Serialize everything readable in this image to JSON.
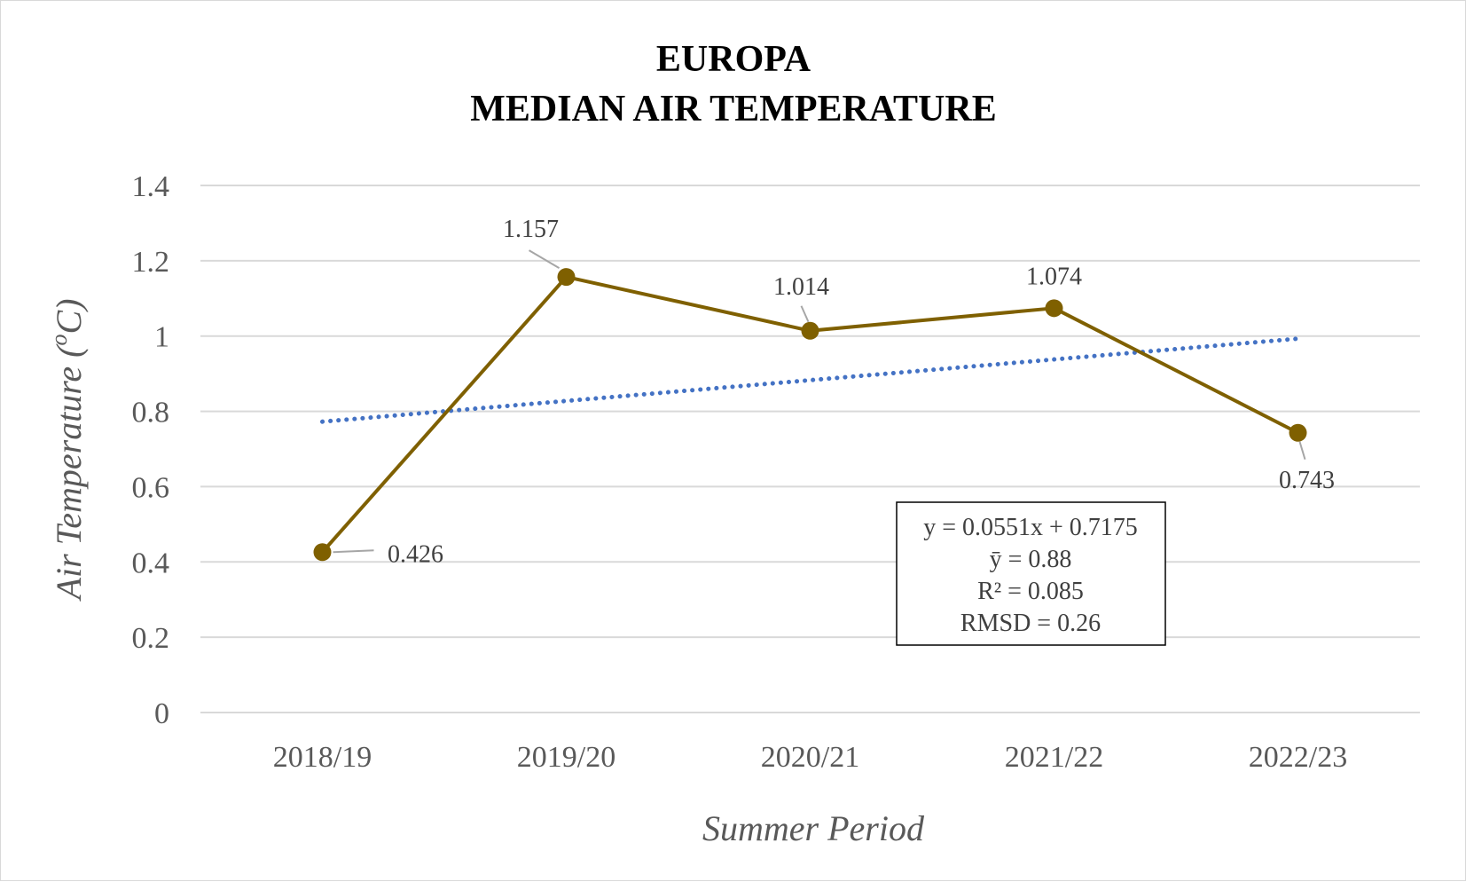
{
  "chart_data": {
    "type": "line",
    "title_lines": [
      "EUROPA",
      "MEDIAN AIR TEMPERATURE"
    ],
    "xlabel": "Summer Period",
    "ylabel_main": "Air Temperature (",
    "ylabel_sup": "o",
    "ylabel_tail": "C)",
    "categories": [
      "2018/19",
      "2019/20",
      "2020/21",
      "2021/22",
      "2022/23"
    ],
    "series": [
      {
        "values": [
          0.426,
          1.157,
          1.014,
          1.074,
          0.743
        ],
        "color": "#7f6000"
      }
    ],
    "data_labels": [
      "0.426",
      "1.157",
      "1.014",
      "1.074",
      "0.743"
    ],
    "trendline": {
      "slope": 0.0551,
      "intercept": 0.7175,
      "color": "#4472c4",
      "style": "dotted"
    },
    "ylim": [
      0,
      1.4
    ],
    "yticks": [
      0,
      0.2,
      0.4,
      0.6,
      0.8,
      1,
      1.2,
      1.4
    ],
    "ytick_labels": [
      "0",
      "0.2",
      "0.4",
      "0.6",
      "0.8",
      "1",
      "1.2",
      "1.4"
    ],
    "grid": true,
    "legend": "none",
    "annotation_box": [
      "y = 0.0551x + 0.7175",
      "ȳ = 0.88",
      "R² = 0.085",
      "RMSD = 0.26"
    ],
    "gridline_color": "#d9d9d9",
    "leader_line_color": "#a6a6a6"
  }
}
